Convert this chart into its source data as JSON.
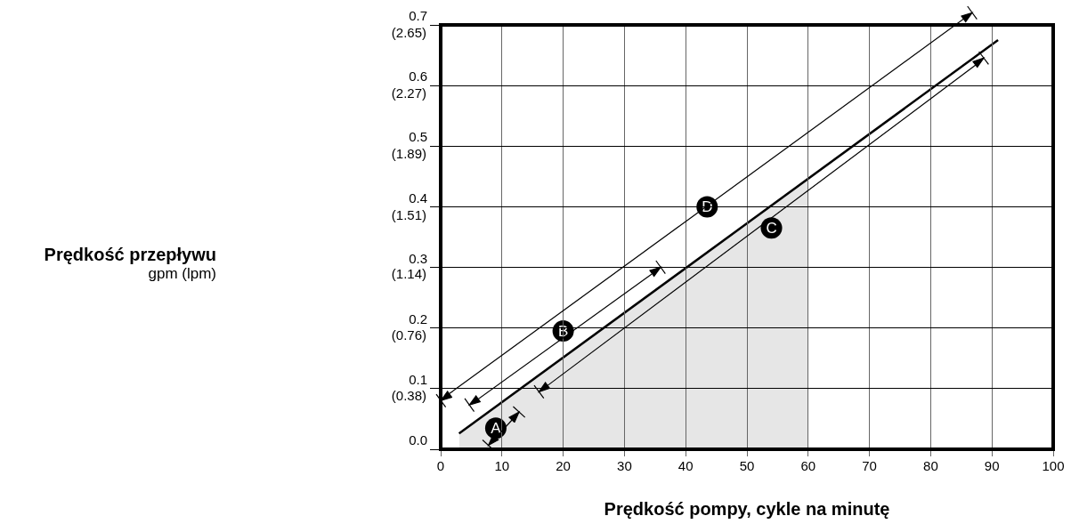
{
  "chart_data": {
    "type": "line",
    "xlabel": "Prędkość pompy, cykle na minutę",
    "xlim": [
      0,
      100
    ],
    "xticks": [
      0,
      10,
      20,
      30,
      40,
      50,
      60,
      70,
      80,
      90,
      100
    ],
    "ylim": [
      0,
      0.7
    ],
    "yticks": [
      {
        "value": 0,
        "label": "0.0"
      },
      0.1,
      0.2,
      0.3,
      0.4,
      0.5,
      0.6,
      0.7
    ],
    "y2lim": [
      0,
      2.65
    ],
    "y2ticks": [
      {
        "value": 0.38,
        "label": "(0.38)"
      },
      {
        "value": 0.76,
        "label": "(0.76)"
      },
      {
        "value": 1.14,
        "label": "(1.14)"
      },
      {
        "value": 1.51,
        "label": "(1.51)"
      },
      {
        "value": 1.89,
        "label": "(1.89)"
      },
      {
        "value": 2.27,
        "label": "(2.27)"
      },
      {
        "value": 2.65,
        "label": "(2.65)"
      }
    ],
    "grid": true,
    "series": [
      {
        "type": "area",
        "color": "#e6e6e6",
        "x": [
          3,
          60
        ],
        "values": [
          0.026,
          0.447
        ]
      },
      {
        "type": "line",
        "color": "#000000",
        "x": [
          3,
          91
        ],
        "values": [
          0.026,
          0.675
        ]
      }
    ],
    "annotations": [
      "Prędkość przepływu\ngpm (lpm)",
      {
        "text": "A",
        "x": 9,
        "y": 0.035
      },
      {
        "text": "B",
        "x": 20,
        "y": 0.195
      },
      {
        "text": "D",
        "x": 43.5,
        "y": 0.4
      },
      {
        "text": "C",
        "x": 54,
        "y": 0.365
      }
    ]
  }
}
